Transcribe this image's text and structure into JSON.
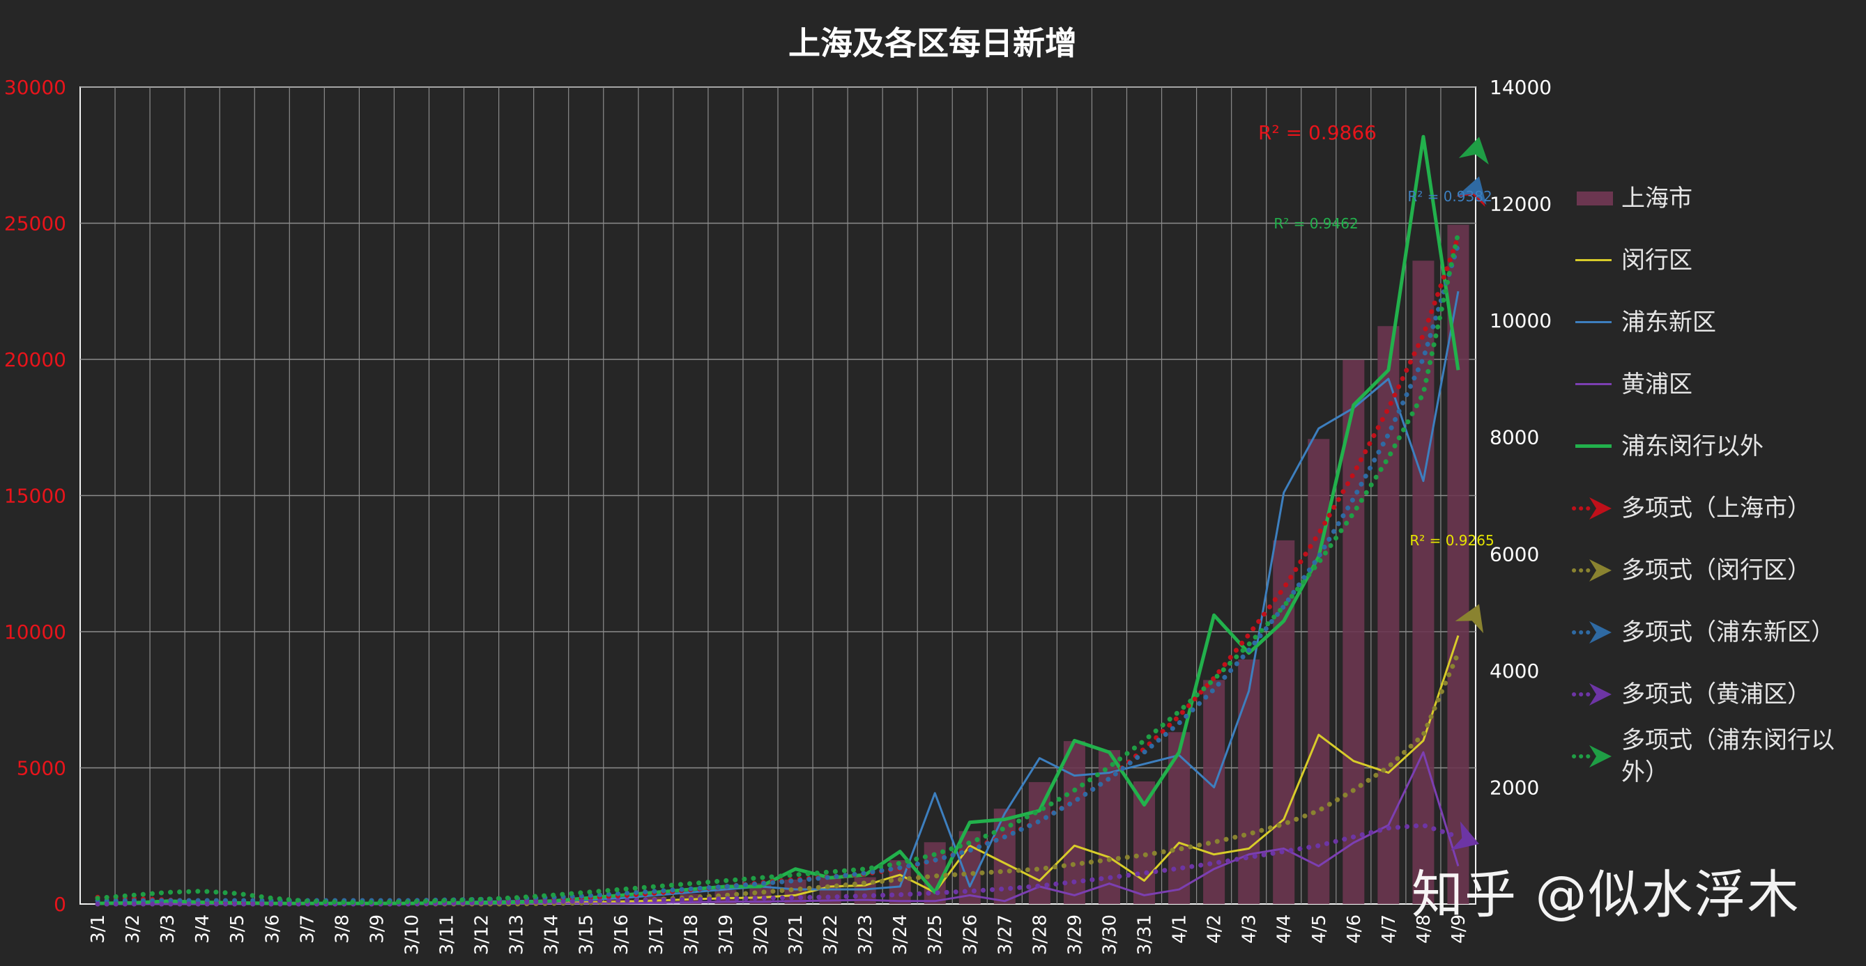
{
  "chart_data": {
    "type": "bar+line",
    "title": "上海及各区每日新增",
    "categories": [
      "3/1",
      "3/2",
      "3/3",
      "3/4",
      "3/5",
      "3/6",
      "3/7",
      "3/8",
      "3/9",
      "3/10",
      "3/11",
      "3/12",
      "3/13",
      "3/14",
      "3/15",
      "3/16",
      "3/17",
      "3/18",
      "3/19",
      "3/20",
      "3/21",
      "3/22",
      "3/23",
      "3/24",
      "3/25",
      "3/26",
      "3/27",
      "3/28",
      "3/29",
      "3/30",
      "3/31",
      "4/1",
      "4/2",
      "4/3",
      "4/4",
      "4/5",
      "4/6",
      "4/7",
      "4/8",
      "4/9"
    ],
    "y_left": {
      "ylim": [
        0,
        30000
      ],
      "ticks": [
        0,
        5000,
        10000,
        15000,
        20000,
        25000,
        30000
      ],
      "color": "#e8141b"
    },
    "y_right": {
      "ylim": [
        0,
        14000
      ],
      "ticks": [
        2000,
        4000,
        6000,
        8000,
        10000,
        12000,
        14000
      ],
      "color": "#ffffff"
    },
    "grid": true,
    "legend_position": "right",
    "bars": {
      "name": "上海市",
      "axis": "left",
      "color": "#6b3650",
      "values": [
        2,
        3,
        3,
        5,
        5,
        50,
        45,
        62,
        76,
        64,
        83,
        64,
        130,
        169,
        202,
        158,
        260,
        374,
        509,
        758,
        896,
        981,
        983,
        1609,
        2269,
        2676,
        3500,
        4477,
        5982,
        5653,
        4502,
        6311,
        8226,
        8981,
        13354,
        17077,
        19982,
        21222,
        23624,
        24944
      ]
    },
    "series": [
      {
        "name": "闵行区",
        "axis": "right",
        "color": "#d8cc2a",
        "width": 3,
        "values": [
          0,
          0,
          0,
          0,
          0,
          0,
          0,
          0,
          5,
          5,
          5,
          10,
          10,
          15,
          30,
          40,
          60,
          80,
          100,
          110,
          150,
          300,
          320,
          500,
          200,
          1000,
          700,
          400,
          1000,
          800,
          400,
          1050,
          850,
          950,
          1450,
          2900,
          2450,
          2250,
          2800,
          4600
        ]
      },
      {
        "name": "浦东新区",
        "axis": "right",
        "color": "#3d7fbf",
        "width": 3,
        "values": [
          0,
          0,
          0,
          0,
          0,
          0,
          5,
          5,
          10,
          20,
          30,
          40,
          50,
          60,
          70,
          100,
          150,
          200,
          250,
          300,
          250,
          250,
          250,
          300,
          1900,
          300,
          1550,
          2500,
          2200,
          2250,
          2400,
          2550,
          2000,
          3650,
          7050,
          8150,
          8500,
          9000,
          7250,
          10500
        ]
      },
      {
        "name": "黄浦区",
        "axis": "right",
        "color": "#7c3fb2",
        "width": 3,
        "values": [
          0,
          0,
          0,
          0,
          0,
          0,
          0,
          0,
          0,
          0,
          0,
          0,
          5,
          10,
          10,
          10,
          20,
          30,
          40,
          40,
          50,
          60,
          70,
          50,
          50,
          150,
          50,
          300,
          150,
          350,
          150,
          250,
          600,
          850,
          950,
          650,
          1050,
          1350,
          2600,
          650
        ]
      },
      {
        "name": "浦东闵行以外",
        "axis": "right",
        "color": "#22b14c",
        "width": 5,
        "values": [
          10,
          20,
          50,
          30,
          20,
          10,
          10,
          10,
          10,
          10,
          20,
          20,
          30,
          50,
          100,
          150,
          200,
          250,
          300,
          300,
          600,
          450,
          500,
          900,
          200,
          1400,
          1450,
          1600,
          2800,
          2600,
          1700,
          2600,
          4950,
          4300,
          4850,
          5950,
          8550,
          9150,
          13150,
          9150
        ]
      }
    ],
    "trendlines": [
      {
        "name": "多项式（上海市）",
        "axis": "left",
        "color": "#c0101a",
        "r2_label": "R² = 0.9866",
        "values": [
          250,
          200,
          150,
          100,
          50,
          20,
          20,
          20,
          30,
          50,
          80,
          100,
          130,
          170,
          220,
          300,
          400,
          520,
          640,
          780,
          900,
          1000,
          1100,
          1300,
          1600,
          2000,
          2500,
          3050,
          3800,
          4600,
          5700,
          6900,
          8300,
          9900,
          11600,
          13600,
          15800,
          18200,
          20900,
          24500
        ]
      },
      {
        "name": "多项式（闵行区）",
        "axis": "right",
        "color": "#8a8330",
        "r2_label": "R² = 0.9265",
        "values": [
          0,
          0,
          0,
          0,
          0,
          0,
          0,
          0,
          0,
          0,
          0,
          0,
          0,
          10,
          20,
          50,
          80,
          110,
          150,
          200,
          250,
          300,
          360,
          420,
          480,
          520,
          560,
          600,
          680,
          760,
          840,
          940,
          1060,
          1200,
          1370,
          1600,
          1950,
          2350,
          2900,
          4300
        ]
      },
      {
        "name": "多项式（浦东新区）",
        "axis": "right",
        "color": "#2f6aa3",
        "r2_label": "R² = 0.9382",
        "values": [
          60,
          60,
          60,
          60,
          60,
          60,
          60,
          60,
          60,
          60,
          70,
          80,
          90,
          110,
          140,
          180,
          220,
          260,
          300,
          350,
          400,
          460,
          530,
          620,
          750,
          920,
          1150,
          1420,
          1760,
          2150,
          2600,
          3100,
          3680,
          4350,
          5100,
          5950,
          6950,
          8050,
          9350,
          11300
        ]
      },
      {
        "name": "多项式（黄浦区）",
        "axis": "right",
        "color": "#6d35a5",
        "r2_label": "",
        "values": [
          0,
          0,
          0,
          0,
          0,
          0,
          0,
          0,
          0,
          0,
          10,
          20,
          30,
          40,
          50,
          60,
          70,
          80,
          90,
          100,
          110,
          120,
          140,
          160,
          190,
          220,
          260,
          310,
          380,
          450,
          530,
          610,
          700,
          800,
          900,
          1000,
          1150,
          1300,
          1350,
          1150
        ]
      },
      {
        "name": "多项式（浦东闵行以外）",
        "axis": "right",
        "color": "#1f9e45",
        "r2_label": "R² = 0.9462",
        "values": [
          100,
          150,
          200,
          220,
          180,
          100,
          50,
          30,
          30,
          40,
          60,
          80,
          110,
          150,
          200,
          250,
          300,
          350,
          400,
          450,
          500,
          550,
          600,
          700,
          850,
          1050,
          1300,
          1600,
          1950,
          2350,
          2800,
          3300,
          3850,
          4450,
          5100,
          5850,
          6700,
          7650,
          8750,
          11500
        ]
      }
    ]
  },
  "watermark": "知乎 @似水浮木"
}
